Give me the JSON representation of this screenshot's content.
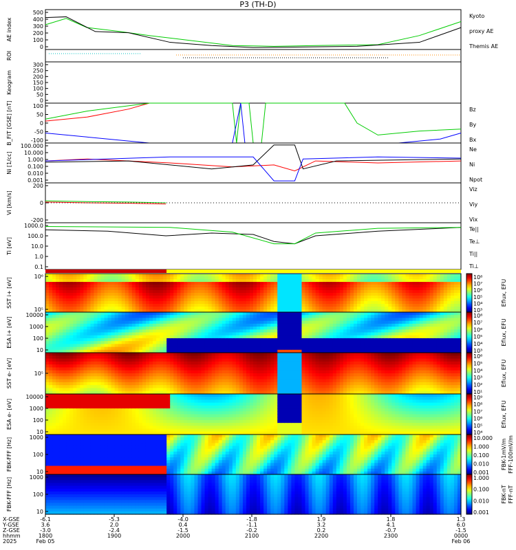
{
  "title": "P3 (TH-D)",
  "colors": {
    "kyoto": "#00cc00",
    "themis": "#000000",
    "red": "#ff0000",
    "green": "#00cc00",
    "blue": "#0000ff",
    "black": "#000000"
  },
  "panels": [
    {
      "id": "ae",
      "ylabel": "AE index",
      "ticks": [
        "500",
        "400",
        "300",
        "200",
        "100",
        "0"
      ],
      "legend": [
        {
          "text": "Kyoto",
          "color": "#00cc00"
        },
        {
          "text": "proxy AE",
          "color": "#00cc00"
        },
        {
          "text": "Themis AE",
          "color": "#000000"
        }
      ]
    },
    {
      "id": "roi",
      "ylabel": "ROI",
      "ticks": [],
      "legend": []
    },
    {
      "id": "keogram",
      "ylabel": "Keogram",
      "ticks": [
        "300",
        "250",
        "200",
        "150",
        "100",
        "50",
        "0"
      ],
      "legend": []
    },
    {
      "id": "bfgm",
      "ylabel": "B_FIT [GSE] [nT]",
      "ticks": [
        "100",
        "50",
        "0",
        "-50",
        "-100"
      ],
      "legend": [
        {
          "text": "Bz",
          "color": "#ff0000"
        },
        {
          "text": "By",
          "color": "#00cc00"
        },
        {
          "text": "Bx",
          "color": "#0000ff"
        }
      ]
    },
    {
      "id": "ni",
      "ylabel": "Ni [1/cc]",
      "ticks": [
        "100.000",
        "10.000",
        "1.000",
        "0.100",
        "0.010",
        "0.001"
      ],
      "legend": [
        {
          "text": "Ne",
          "color": "#ff0000"
        },
        {
          "text": "Ni",
          "color": "#000000"
        },
        {
          "text": "Npot",
          "color": "#0000ff"
        }
      ]
    },
    {
      "id": "vi",
      "ylabel": "Vi [km/s]",
      "ticks": [
        "200",
        "0",
        "-200"
      ],
      "legend": [
        {
          "text": "Viz",
          "color": "#ff0000"
        },
        {
          "text": "Viy",
          "color": "#00cc00"
        },
        {
          "text": "Vix",
          "color": "#0000ff"
        }
      ]
    },
    {
      "id": "ti",
      "ylabel": "Ti [eV]",
      "ticks": [
        "1000.0",
        "100.0",
        "10.0",
        "1.0",
        "0.1"
      ],
      "legend": [
        {
          "text": "Te||",
          "color": "#000000"
        },
        {
          "text": "Te⊥",
          "color": "#ff0000"
        },
        {
          "text": "Ti||",
          "color": "#00cc00"
        },
        {
          "text": "Ti⊥",
          "color": "#0000ff"
        }
      ]
    },
    {
      "id": "sst_i",
      "ylabel": "SST i+ [eV]",
      "ticks": [
        "10⁶",
        "10⁵"
      ],
      "cbar": "Eflux, EFU",
      "cticks": [
        "10⁸",
        "10⁷",
        "10⁶",
        "10⁵",
        "10⁴",
        "10³"
      ]
    },
    {
      "id": "esa_i",
      "ylabel": "ESA i+ [eV]",
      "ticks": [
        "10000",
        "1000",
        "100",
        "10"
      ],
      "cbar": "Eflux, EFU",
      "cticks": [
        "10⁸",
        "10⁷",
        "10⁶",
        "10⁵",
        "10⁴",
        "10³"
      ]
    },
    {
      "id": "sst_e",
      "ylabel": "SST e- [eV]",
      "ticks": [
        "10⁵"
      ],
      "cbar": "Eflux, EFU",
      "cticks": [
        "10⁶",
        "10⁵",
        "10⁴",
        "10³",
        "10²",
        "10¹"
      ]
    },
    {
      "id": "esa_e",
      "ylabel": "ESA e- [eV]",
      "ticks": [
        "10000",
        "1000",
        "100",
        "10"
      ],
      "cbar": "Eflux, EFU",
      "cticks": [
        "10⁹",
        "10⁸",
        "10⁷",
        "10⁶",
        "10⁵",
        "10⁴"
      ]
    },
    {
      "id": "fbk1",
      "ylabel": "FBK-FFF [Hz]",
      "ticks": [
        "1000",
        "100",
        "10"
      ],
      "cbar": "FBK-1mV/m",
      "cticks": [
        "10.000",
        "1.000",
        "0.100",
        "0.010",
        "0.001"
      ],
      "cunit": "FFF-100mV/m"
    },
    {
      "id": "fbk2",
      "ylabel": "FBK-FFF [Hz]",
      "ticks": [
        "1000",
        "100",
        "10"
      ],
      "cbar": "FBK-nT",
      "cticks": [
        "1.000",
        "0.100",
        "0.010",
        "0.001"
      ],
      "cunit": "FFF-nT"
    }
  ],
  "xaxis": {
    "row_labels": [
      "X-GSE",
      "Y-GSE",
      "Z-GSE",
      "hhmm",
      "2025"
    ],
    "ticks": [
      {
        "x": "-6.1",
        "y": "3.6",
        "z": "-3.0",
        "t": "1800",
        "d": "Feb 05"
      },
      {
        "x": "-5.3",
        "y": "2.0",
        "z": "-2.4",
        "t": "1900",
        "d": ""
      },
      {
        "x": "-4.0",
        "y": "0.4",
        "z": "-1.5",
        "t": "2000",
        "d": ""
      },
      {
        "x": "-1.8",
        "y": "-1.1",
        "z": "-0.2",
        "t": "2100",
        "d": ""
      },
      {
        "x": "1.9",
        "y": "3.2",
        "z": "0.2",
        "t": "2200",
        "d": ""
      },
      {
        "x": "1.8",
        "y": "4.1",
        "z": "-0.7",
        "t": "2300",
        "d": ""
      },
      {
        "x": "1.3",
        "y": "6.0",
        "z": "-1.5",
        "t": "0000",
        "d": "Feb 06"
      }
    ]
  },
  "chart_data": [
    {
      "type": "line",
      "title": "P3 (TH-D)",
      "ylabel": "AE index",
      "ylim": [
        0,
        500
      ],
      "x": [
        "1800",
        "1900",
        "2000",
        "2100",
        "2200",
        "2300",
        "0000"
      ],
      "series": [
        {
          "name": "Kyoto proxy AE",
          "values": [
            300,
            270,
            130,
            40,
            45,
            60,
            290
          ]
        },
        {
          "name": "Themis AE",
          "values": [
            410,
            210,
            100,
            30,
            30,
            40,
            230
          ]
        }
      ]
    },
    {
      "type": "line",
      "ylabel": "B_FIT [GSE] [nT]",
      "ylim": [
        -100,
        100
      ],
      "x": [
        "1800",
        "1900",
        "2000",
        "2100",
        "2200",
        "2300",
        "0000"
      ],
      "series": [
        {
          "name": "Bz",
          "values": [
            10,
            60,
            100,
            null,
            null,
            100,
            100
          ]
        },
        {
          "name": "By",
          "values": [
            60,
            100,
            100,
            -100,
            -100,
            30,
            40
          ]
        },
        {
          "name": "Bx",
          "values": [
            -50,
            -70,
            -100,
            null,
            null,
            -100,
            -50
          ]
        }
      ]
    },
    {
      "type": "line",
      "ylabel": "Ni [1/cc]",
      "ylim": [
        0.001,
        100
      ],
      "x": [
        "1800",
        "1900",
        "2000",
        "2100",
        "2200",
        "2300",
        "0000"
      ],
      "series": [
        {
          "name": "Ne",
          "values": [
            1.0,
            0.8,
            0.6,
            0.5,
            0.7,
            0.6,
            0.9
          ]
        },
        {
          "name": "Ni",
          "values": [
            0.5,
            0.6,
            0.6,
            0.3,
            0.6,
            0.5,
            0.6
          ]
        },
        {
          "name": "Npot",
          "values": [
            1.0,
            1.0,
            1.0,
            0.4,
            1.0,
            1.0,
            1.0
          ]
        }
      ]
    },
    {
      "type": "line",
      "ylabel": "Vi [km/s]",
      "ylim": [
        -250,
        250
      ],
      "x": [
        "1800",
        "1830",
        "1900",
        "1930"
      ],
      "series": [
        {
          "name": "Viz",
          "values": [
            10,
            0,
            -5,
            -10
          ]
        },
        {
          "name": "Viy",
          "values": [
            15,
            10,
            5,
            0
          ]
        },
        {
          "name": "Vix",
          "values": [
            0,
            0,
            0,
            0
          ]
        }
      ]
    },
    {
      "type": "line",
      "ylabel": "Ti [eV]",
      "ylim": [
        0.1,
        10000
      ],
      "x": [
        "1800",
        "1900",
        "2000",
        "2100",
        "2200",
        "2300",
        "0000"
      ],
      "series": [
        {
          "name": "Te||",
          "values": [
            3000,
            2000,
            300,
            400,
            100,
            600,
            1500
          ]
        },
        {
          "name": "Ti||",
          "values": [
            5000,
            5000,
            4000,
            2000,
            100,
            3000,
            4000
          ]
        }
      ]
    }
  ]
}
